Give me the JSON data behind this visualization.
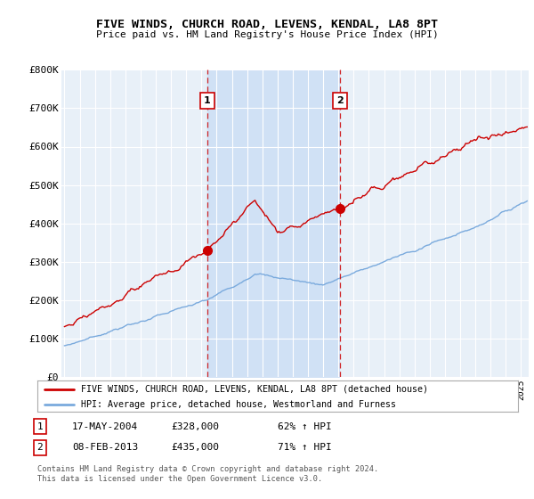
{
  "title": "FIVE WINDS, CHURCH ROAD, LEVENS, KENDAL, LA8 8PT",
  "subtitle": "Price paid vs. HM Land Registry's House Price Index (HPI)",
  "ylabel_ticks": [
    "£0",
    "£100K",
    "£200K",
    "£300K",
    "£400K",
    "£500K",
    "£600K",
    "£700K",
    "£800K"
  ],
  "ytick_values": [
    0,
    100000,
    200000,
    300000,
    400000,
    500000,
    600000,
    700000,
    800000
  ],
  "ylim": [
    0,
    800000
  ],
  "xlim_start": 1994.8,
  "xlim_end": 2025.5,
  "sale1_year": 2004.38,
  "sale1_price": 328000,
  "sale1_label": "1",
  "sale1_date": "17-MAY-2004",
  "sale1_pct": "62% ↑ HPI",
  "sale2_year": 2013.1,
  "sale2_price": 435000,
  "sale2_label": "2",
  "sale2_date": "08-FEB-2013",
  "sale2_pct": "71% ↑ HPI",
  "plot_bg_color": "#e8f0f8",
  "fig_bg_color": "#ffffff",
  "red_line_color": "#cc0000",
  "blue_line_color": "#7aaadd",
  "fill_color": "#ccdff5",
  "vline_color": "#cc0000",
  "legend_red_label": "FIVE WINDS, CHURCH ROAD, LEVENS, KENDAL, LA8 8PT (detached house)",
  "legend_blue_label": "HPI: Average price, detached house, Westmorland and Furness",
  "footer1": "Contains HM Land Registry data © Crown copyright and database right 2024.",
  "footer2": "This data is licensed under the Open Government Licence v3.0.",
  "marker_box_color": "#cc0000",
  "dot_color": "#cc0000"
}
